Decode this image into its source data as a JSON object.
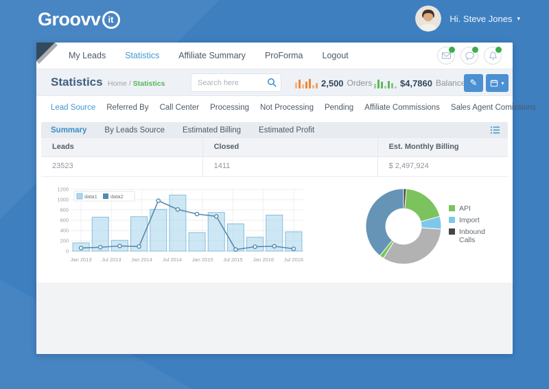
{
  "app": {
    "logo_text": "Groovv",
    "logo_badge": "it",
    "greeting": "Hi. Steve Jones"
  },
  "nav": {
    "items": [
      {
        "label": "My Leads",
        "active": false
      },
      {
        "label": "Statistics",
        "active": true
      },
      {
        "label": "Affiliate Summary",
        "active": false
      },
      {
        "label": "ProForma",
        "active": false
      },
      {
        "label": "Logout",
        "active": false
      }
    ],
    "icons": [
      "mail-icon",
      "chat-icon",
      "bell-icon"
    ]
  },
  "header": {
    "title": "Statistics",
    "breadcrumb": "Home /",
    "breadcrumb_active": "Statistics",
    "search_placeholder": "Search here",
    "orders_value": "2,500",
    "orders_label": "Orders",
    "balance_value": "$4,7860",
    "balance_label": "Balance"
  },
  "tabs": {
    "items": [
      {
        "label": "Lead Source",
        "active": true
      },
      {
        "label": "Referred By",
        "active": false
      },
      {
        "label": "Call Center",
        "active": false
      },
      {
        "label": "Processing",
        "active": false
      },
      {
        "label": "Not Processing",
        "active": false
      },
      {
        "label": "Pending",
        "active": false
      },
      {
        "label": "Affiliate Commissions",
        "active": false
      },
      {
        "label": "Sales Agent Comissions",
        "active": false
      }
    ]
  },
  "subtabs": {
    "items": [
      {
        "label": "Summary",
        "active": true
      },
      {
        "label": "By Leads Source",
        "active": false
      },
      {
        "label": "Estimated Billing",
        "active": false
      },
      {
        "label": "Estimated Profit",
        "active": false
      }
    ]
  },
  "table": {
    "columns": [
      "Leads",
      "Closed",
      "Est. Monthly Billing"
    ],
    "row": [
      "23523",
      "1411",
      "$ 2,497,924"
    ]
  },
  "chart_data": [
    {
      "type": "bar",
      "title": "",
      "x_labels": [
        "Jan 2013",
        "Jul 2013",
        "Jan 2014",
        "Jul 2014",
        "Jan 2015",
        "Jul 2015",
        "Jan 2016",
        "Jul 2016"
      ],
      "series": [
        {
          "name": "data1",
          "type": "bar",
          "color": "#aed7ee",
          "stroke": "#85bedd",
          "values": [
            160,
            660,
            210,
            670,
            810,
            1090,
            360,
            750,
            530,
            270,
            700,
            375
          ]
        },
        {
          "name": "data2",
          "type": "line",
          "color": "#5589ab",
          "values": [
            60,
            75,
            100,
            90,
            980,
            810,
            720,
            675,
            30,
            85,
            95,
            45
          ]
        }
      ],
      "ylim": [
        0,
        1200
      ],
      "yticks": [
        0,
        200,
        400,
        600,
        800,
        1000,
        1200
      ],
      "grid": true,
      "legend_position": "top-left"
    },
    {
      "type": "pie",
      "donut": true,
      "slices": [
        {
          "label": "Inbound Calls",
          "color": "#454545",
          "fraction": 0.012
        },
        {
          "label": "API",
          "color": "#7cc35e",
          "fraction": 0.195
        },
        {
          "label": "Import",
          "color": "#7dc8ea",
          "fraction": 0.055
        },
        {
          "label": "unlabeled",
          "color": "#b2b2b2",
          "fraction": 0.328
        },
        {
          "label": "API",
          "color": "#7cc35e",
          "fraction": 0.018
        },
        {
          "label": "unlabeled",
          "color": "#6594b6",
          "fraction": 0.392
        }
      ],
      "legend": [
        {
          "label": "API",
          "color": "#7cc35e"
        },
        {
          "label": "Import",
          "color": "#7dc8ea"
        },
        {
          "label": "Inbound Calls",
          "color": "#454545"
        }
      ],
      "legend_position": "right"
    }
  ],
  "colors": {
    "background": "#3e7fc0",
    "accent_blue": "#3f99d6",
    "breadcrumb_green": "#55b559",
    "value_navy": "#33475b",
    "badge_green": "#3cae4a",
    "orders_bars": "#f0862b",
    "balance_bars": "#5cb85c"
  }
}
